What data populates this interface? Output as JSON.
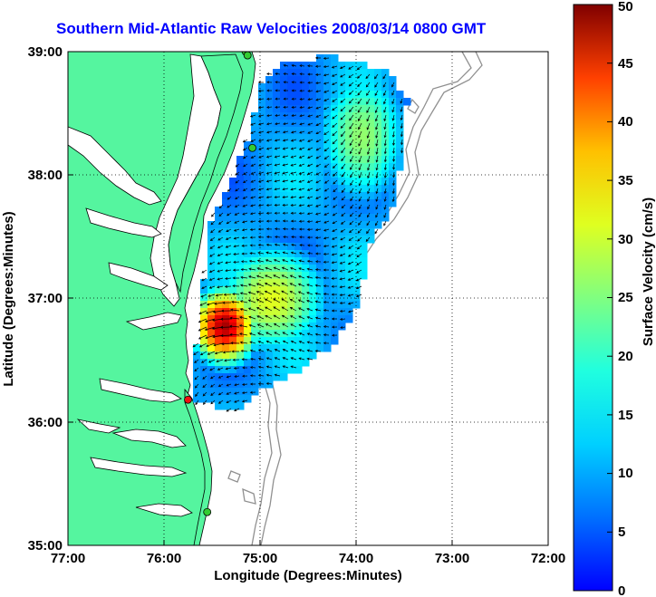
{
  "title": "Southern Mid-Atlantic Raw Velocities 2008/03/14 0800 GMT",
  "map": {
    "xlabel": "Longitude (Degrees:Minutes)",
    "ylabel": "Latitude (Degrees:Minutes)",
    "x_ticks": [
      "77:00",
      "76:00",
      "75:00",
      "74:00",
      "73:00",
      "72:00"
    ],
    "y_ticks": [
      "39:00",
      "38:00",
      "37:00",
      "36:00",
      "35:00"
    ],
    "lon_range": [
      -77,
      -72
    ],
    "lat_range": [
      35,
      39
    ],
    "land_color": "#55f59f",
    "grid": "dotted",
    "stations": [
      {
        "lon": -75.15,
        "lat": 39.0,
        "color": "#33cc33"
      },
      {
        "lon": -75.13,
        "lat": 38.97,
        "color": "#33cc33"
      },
      {
        "lon": -75.08,
        "lat": 38.22,
        "color": "#33cc33"
      },
      {
        "lon": -75.75,
        "lat": 36.18,
        "color": "#ee1111"
      },
      {
        "lon": -75.55,
        "lat": 35.27,
        "color": "#33cc33"
      }
    ]
  },
  "colorbar": {
    "label": "Surface Velocity (cm/s)",
    "min": 0,
    "max": 50,
    "ticks": [
      "0",
      "5",
      "10",
      "15",
      "20",
      "25",
      "30",
      "35",
      "40",
      "45",
      "50"
    ],
    "colormap": "jet"
  }
}
